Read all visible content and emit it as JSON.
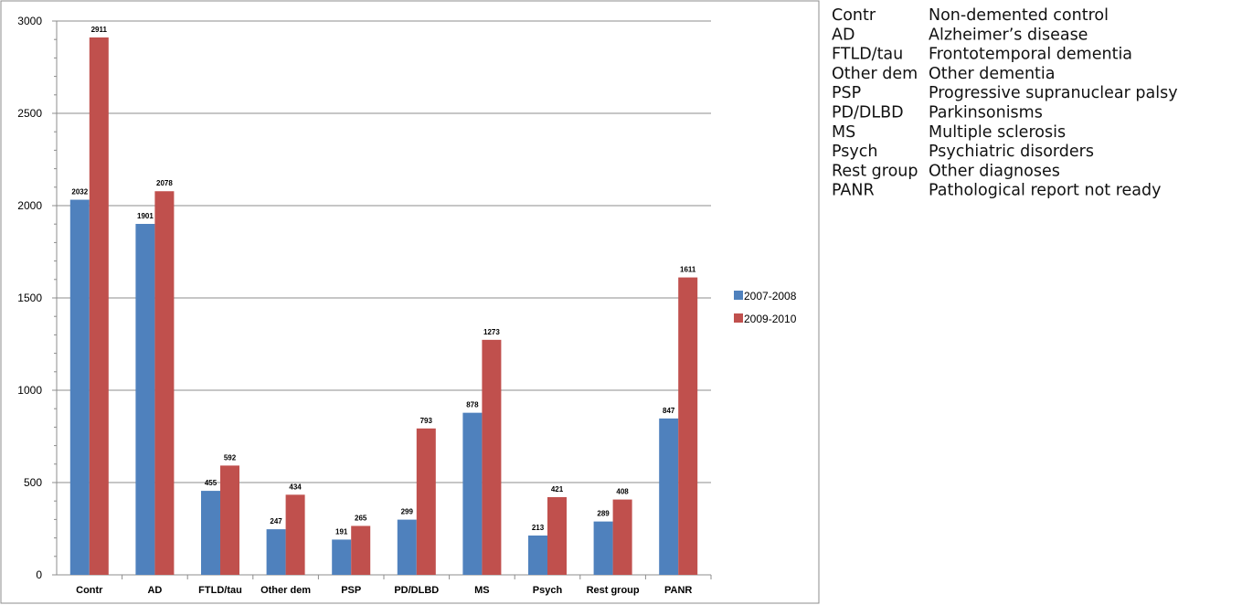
{
  "chart_data": {
    "type": "bar",
    "title": "",
    "xlabel": "",
    "ylabel": "",
    "ylim": [
      0,
      3000
    ],
    "yticks": [
      0,
      500,
      1000,
      1500,
      2000,
      2500,
      3000
    ],
    "grid": true,
    "legend_position": "right",
    "categories": [
      "Contr",
      "AD",
      "FTLD/tau",
      "Other dem",
      "PSP",
      "PD/DLBD",
      "MS",
      "Psych",
      "Rest group",
      "PANR"
    ],
    "series": [
      {
        "name": "2007-2008",
        "color": "#4F81BD",
        "values": [
          2032,
          1901,
          455,
          247,
          191,
          299,
          878,
          213,
          289,
          847
        ]
      },
      {
        "name": "2009-2010",
        "color": "#C0504D",
        "values": [
          2911,
          2078,
          592,
          434,
          265,
          793,
          1273,
          421,
          408,
          1611
        ]
      }
    ]
  },
  "abbreviations": [
    {
      "abbr": "Contr",
      "description": "Non-demented control"
    },
    {
      "abbr": "AD",
      "description": "Alzheimer’s disease"
    },
    {
      "abbr": "FTLD/tau",
      "description": "Frontotemporal dementia"
    },
    {
      "abbr": "Other dem",
      "description": "Other dementia"
    },
    {
      "abbr": "PSP",
      "description": "Progressive supranuclear palsy"
    },
    {
      "abbr": "PD/DLBD",
      "description": "Parkinsonisms"
    },
    {
      "abbr": "MS",
      "description": "Multiple sclerosis"
    },
    {
      "abbr": "Psych",
      "description": "Psychiatric disorders"
    },
    {
      "abbr": "Rest group",
      "description": "Other diagnoses"
    },
    {
      "abbr": "PANR",
      "description": "Pathological report not ready"
    }
  ]
}
